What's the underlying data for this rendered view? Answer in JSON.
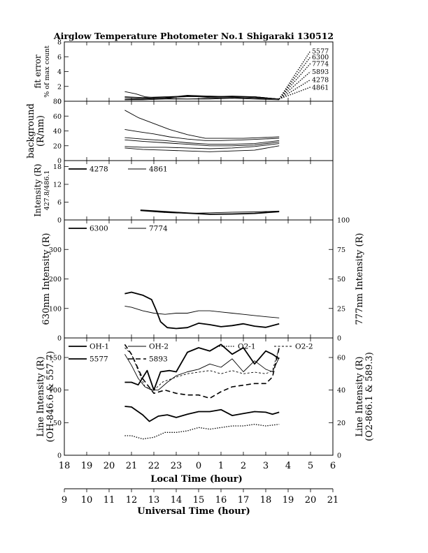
{
  "title": "Airglow Temperature Photometer No.1   Shigaraki   130512",
  "x_axes": {
    "local": {
      "label": "Local Time (hour)",
      "ticks": [
        "18",
        "19",
        "20",
        "21",
        "22",
        "23",
        "0",
        "1",
        "2",
        "3",
        "4",
        "5",
        "6"
      ]
    },
    "universal": {
      "label": "Universal Time (hour)",
      "ticks": [
        "9",
        "10",
        "11",
        "12",
        "13",
        "14",
        "15",
        "16",
        "17",
        "18",
        "19",
        "20",
        "21"
      ]
    }
  },
  "chart_data": [
    {
      "id": "fit-error",
      "type": "line",
      "ylabel": [
        "fit error",
        "% of max count"
      ],
      "ylim": [
        0,
        8
      ],
      "yticks": [
        0,
        2,
        4,
        6,
        8
      ],
      "legend_labels": [
        "5577",
        "6300",
        "7774",
        "5893",
        "4278",
        "4861"
      ],
      "series": [
        {
          "name": "5577",
          "dash": "solid",
          "x": [
            20.7,
            21.5,
            22.5,
            23.5,
            0.5,
            1.5,
            2.5,
            3.6
          ],
          "y": [
            0.3,
            0.3,
            0.4,
            0.3,
            0.4,
            0.5,
            0.4,
            0.3
          ]
        },
        {
          "name": "6300",
          "dash": "solid",
          "x": [
            20.7,
            21.5,
            22.5,
            23.5,
            0.5,
            1.5,
            2.5,
            3.6
          ],
          "y": [
            0.5,
            0.4,
            0.5,
            0.6,
            0.6,
            0.6,
            0.5,
            0.3
          ]
        },
        {
          "name": "7774",
          "dash": "solid",
          "x": [
            20.7,
            21.5,
            22.5,
            23.5,
            0.5,
            1.5,
            2.5,
            3.6
          ],
          "y": [
            0.6,
            0.5,
            0.6,
            0.7,
            0.6,
            0.7,
            0.6,
            0.3
          ]
        },
        {
          "name": "5893",
          "dash": "solid",
          "x": [
            20.7,
            21.5,
            22.5,
            23.5,
            0.5,
            1.5,
            2.5,
            3.6
          ],
          "y": [
            0.2,
            0.2,
            0.3,
            0.3,
            0.3,
            0.4,
            0.3,
            0.2
          ]
        },
        {
          "name": "4278",
          "dash": "solid",
          "x": [
            20.7,
            21.2,
            21.6,
            22.0,
            22.5,
            23.5,
            0.5,
            1.5,
            2.5,
            3.6
          ],
          "y": [
            1.3,
            1.0,
            0.6,
            0.5,
            0.5,
            0.8,
            0.7,
            0.6,
            0.6,
            0.3
          ]
        },
        {
          "name": "4861",
          "dash": "solid",
          "x": [
            20.7,
            21.5,
            22.5,
            23.5,
            0.5,
            1.5,
            2.5,
            3.6
          ],
          "y": [
            0.2,
            0.3,
            0.4,
            0.7,
            0.5,
            0.5,
            0.6,
            0.3
          ]
        },
        {
          "name": "5577-extrap",
          "dash": "dotted",
          "x": [
            3.6,
            5.0
          ],
          "y": [
            0.3,
            6.8
          ]
        },
        {
          "name": "6300-extrap",
          "dash": "dotted",
          "x": [
            3.6,
            5.0
          ],
          "y": [
            0.3,
            6.0
          ]
        },
        {
          "name": "7774-extrap",
          "dash": "dotted",
          "x": [
            3.6,
            5.0
          ],
          "y": [
            0.3,
            5.1
          ]
        },
        {
          "name": "5893-extrap",
          "dash": "dotted",
          "x": [
            3.6,
            5.0
          ],
          "y": [
            0.3,
            4.0
          ]
        },
        {
          "name": "4278-extrap",
          "dash": "dotted",
          "x": [
            3.6,
            5.0
          ],
          "y": [
            0.3,
            2.9
          ]
        },
        {
          "name": "4861-extrap",
          "dash": "dotted",
          "x": [
            3.6,
            5.0
          ],
          "y": [
            0.3,
            1.9
          ]
        }
      ]
    },
    {
      "id": "background",
      "type": "line",
      "ylabel": [
        "background",
        "(R/nm)"
      ],
      "ylim": [
        0,
        80
      ],
      "yticks": [
        0,
        20,
        40,
        60,
        80
      ],
      "series": [
        {
          "name": "b1",
          "dash": "solid",
          "x": [
            20.7,
            21.3,
            22.0,
            22.7,
            23.5,
            0.3,
            1.0,
            2.0,
            2.8,
            3.6
          ],
          "y": [
            68,
            58,
            50,
            42,
            35,
            30,
            30,
            30,
            31,
            32
          ]
        },
        {
          "name": "b2",
          "dash": "solid",
          "x": [
            20.7,
            21.3,
            22.0,
            22.7,
            23.5,
            0.3,
            1.0,
            2.0,
            2.8,
            3.6
          ],
          "y": [
            42,
            39,
            36,
            32,
            29,
            27,
            27,
            28,
            29,
            30
          ]
        },
        {
          "name": "b3",
          "dash": "solid",
          "x": [
            20.7,
            21.5,
            22.5,
            23.5,
            0.5,
            1.5,
            2.5,
            3.6
          ],
          "y": [
            31,
            29,
            27,
            24,
            22,
            22,
            23,
            27
          ]
        },
        {
          "name": "b4",
          "dash": "solid",
          "x": [
            20.7,
            21.5,
            22.5,
            23.5,
            0.5,
            1.5,
            2.5,
            3.6
          ],
          "y": [
            28,
            26,
            24,
            22,
            20,
            20,
            21,
            25
          ]
        },
        {
          "name": "b5",
          "dash": "solid",
          "x": [
            20.7,
            21.5,
            22.5,
            23.5,
            0.5,
            1.5,
            2.5,
            3.6
          ],
          "y": [
            19,
            18,
            18,
            17,
            16,
            17,
            19,
            23
          ]
        },
        {
          "name": "b6",
          "dash": "solid",
          "x": [
            20.7,
            21.5,
            22.5,
            23.5,
            0.5,
            1.5,
            2.5,
            3.6
          ],
          "y": [
            17,
            15,
            14,
            13,
            12,
            13,
            14,
            20
          ]
        }
      ]
    },
    {
      "id": "intensity-blue",
      "type": "line",
      "ylabel": [
        "Intensity (R)",
        "427.8/486.1"
      ],
      "ylim": [
        0,
        20
      ],
      "yticks": [
        0,
        6,
        12,
        18
      ],
      "legend": [
        {
          "name": "4278",
          "dash": "thick"
        },
        {
          "name": "4861",
          "dash": "solid"
        }
      ],
      "series": [
        {
          "name": "4278",
          "dash": "thick",
          "x": [
            21.4,
            22.5,
            23.5,
            0.5,
            1.5,
            2.5,
            3.6
          ],
          "y": [
            3.3,
            2.8,
            2.3,
            1.9,
            2.0,
            2.2,
            2.8
          ]
        },
        {
          "name": "4861",
          "dash": "solid",
          "x": [
            21.4,
            22.5,
            23.5,
            0.5,
            1.5,
            2.5,
            3.6
          ],
          "y": [
            3.1,
            2.5,
            2.2,
            2.4,
            2.6,
            2.7,
            3.0
          ]
        }
      ]
    },
    {
      "id": "red-line",
      "type": "line",
      "ylabel": "630nm Intensity (R)",
      "y2label": "777nm Intensity (R)",
      "ylim": [
        0,
        400
      ],
      "yticks": [
        0,
        100,
        200,
        300
      ],
      "y2lim": [
        0,
        100
      ],
      "y2ticks": [
        0,
        25,
        50,
        75,
        100
      ],
      "legend": [
        {
          "name": "6300",
          "dash": "thick"
        },
        {
          "name": "7774",
          "dash": "solid"
        }
      ],
      "series": [
        {
          "name": "6300",
          "dash": "thick",
          "axis": "left",
          "x": [
            20.7,
            21.0,
            21.5,
            21.9,
            22.1,
            22.3,
            22.6,
            23.0,
            23.5,
            0.0,
            0.5,
            1.0,
            1.5,
            2.0,
            2.5,
            3.0,
            3.6
          ],
          "y": [
            150,
            155,
            145,
            130,
            95,
            55,
            35,
            32,
            35,
            50,
            45,
            38,
            42,
            48,
            40,
            36,
            48
          ]
        },
        {
          "name": "7774",
          "dash": "solid",
          "axis": "right",
          "x": [
            20.7,
            21.0,
            21.5,
            22.0,
            22.5,
            23.0,
            23.5,
            0.0,
            0.5,
            1.0,
            1.5,
            2.0,
            2.5,
            3.0,
            3.6
          ],
          "y": [
            27,
            26,
            23,
            21,
            20,
            21,
            21,
            23,
            23,
            22,
            21,
            20,
            19,
            18,
            17
          ]
        }
      ]
    },
    {
      "id": "line-intensity",
      "type": "line",
      "ylabel": [
        "Line Intensity (R)",
        "(OH-846.6 & 557.7)"
      ],
      "y2label": [
        "Line Intensity (R)",
        "(O2-866.1 & 589.3)"
      ],
      "ylim": [
        0,
        180
      ],
      "yticks": [
        0,
        50,
        100,
        150
      ],
      "y2lim": [
        0,
        72
      ],
      "y2ticks": [
        0,
        20,
        40,
        60
      ],
      "legend": [
        {
          "name": "OH-1",
          "dash": "thick"
        },
        {
          "name": "OH-2",
          "dash": "solid"
        },
        {
          "name": "O2-1",
          "dash": "dotted"
        },
        {
          "name": "O2-2",
          "dash": "dashed-thin"
        },
        {
          "name": "5577",
          "dash": "thick"
        },
        {
          "name": "5893",
          "dash": "dashed-thick"
        }
      ],
      "series": [
        {
          "name": "OH-1",
          "dash": "thick",
          "axis": "left",
          "x": [
            20.7,
            21.0,
            21.5,
            21.8,
            22.2,
            22.6,
            23.0,
            23.5,
            0.0,
            0.5,
            1.0,
            1.5,
            2.0,
            2.5,
            3.0,
            3.3,
            3.6
          ],
          "y": [
            75,
            74,
            62,
            52,
            60,
            62,
            58,
            63,
            67,
            67,
            70,
            61,
            64,
            67,
            66,
            63,
            66
          ]
        },
        {
          "name": "OH-2",
          "dash": "solid",
          "axis": "left",
          "x": [
            20.7,
            21.0,
            21.3,
            21.6,
            21.9,
            22.2,
            22.6,
            23.0,
            23.5,
            0.0,
            0.5,
            1.0,
            1.5,
            2.0,
            2.5,
            3.0,
            3.3,
            3.6
          ],
          "y": [
            155,
            138,
            118,
            105,
            100,
            100,
            112,
            122,
            128,
            132,
            140,
            135,
            148,
            128,
            145,
            132,
            128,
            150
          ]
        },
        {
          "name": "5577",
          "dash": "thick",
          "axis": "left",
          "x": [
            20.7,
            21.0,
            21.3,
            21.7,
            22.0,
            22.3,
            22.7,
            23.0,
            23.5,
            0.0,
            0.5,
            1.0,
            1.5,
            2.0,
            2.5,
            3.0,
            3.3,
            3.6
          ],
          "y": [
            112,
            112,
            108,
            130,
            100,
            128,
            130,
            128,
            158,
            165,
            160,
            170,
            155,
            165,
            140,
            160,
            155,
            148
          ]
        },
        {
          "name": "O2-1",
          "dash": "dotted",
          "axis": "right",
          "x": [
            20.7,
            21.0,
            21.5,
            22.0,
            22.5,
            23.0,
            23.5,
            0.0,
            0.5,
            1.0,
            1.5,
            2.0,
            2.5,
            3.0,
            3.6
          ],
          "y": [
            12,
            12,
            10,
            11,
            14,
            14,
            15,
            17,
            16,
            17,
            18,
            18,
            19,
            18,
            19
          ]
        },
        {
          "name": "5893",
          "dash": "dashed-thick",
          "axis": "right",
          "x": [
            20.7,
            21.0,
            21.5,
            22.0,
            22.5,
            23.0,
            23.5,
            0.0,
            0.5,
            1.0,
            1.5,
            2.0,
            2.5,
            3.0,
            3.3,
            3.6
          ],
          "y": [
            68,
            62,
            47,
            38,
            40,
            38,
            37,
            37,
            35,
            39,
            42,
            43,
            44,
            44,
            48,
            66
          ]
        },
        {
          "name": "O2-2",
          "dash": "dashed-thin",
          "axis": "right",
          "x": [
            20.7,
            21.0,
            21.3,
            21.6,
            22.0,
            22.4,
            23.0,
            23.5,
            0.0,
            0.5,
            1.0,
            1.5,
            2.0,
            2.5,
            3.0,
            3.3,
            3.6
          ],
          "y": [
            66,
            62,
            52,
            42,
            40,
            45,
            48,
            50,
            51,
            52,
            50,
            52,
            50,
            51,
            50,
            52,
            66
          ]
        }
      ]
    }
  ]
}
